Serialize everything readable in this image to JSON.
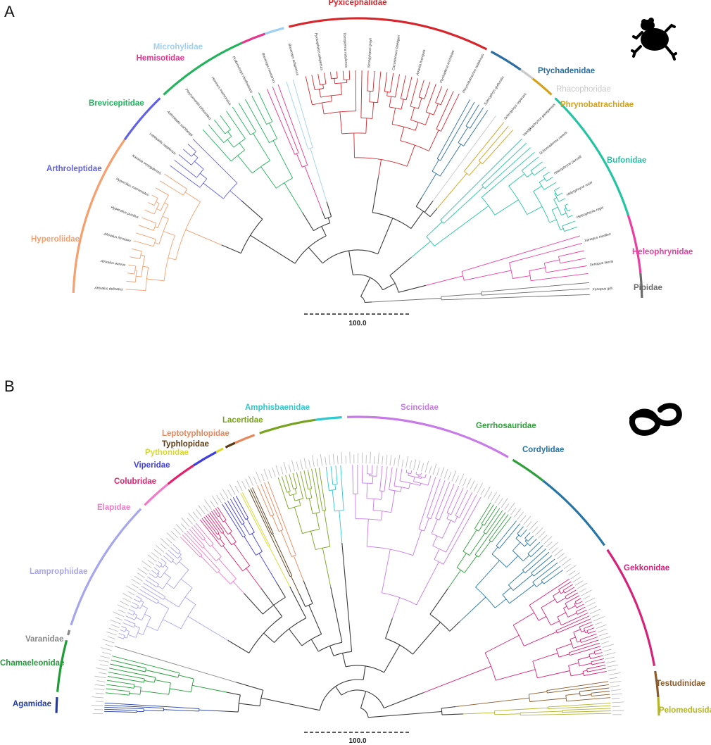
{
  "panels": [
    {
      "letter": "A",
      "silhouette": "frog-silhouette-icon",
      "scale_label": "100.0",
      "families": [
        {
          "name": "Pyxicephalidae",
          "color": "#d7262b"
        },
        {
          "name": "Microhylidae",
          "color": "#9fd0f2"
        },
        {
          "name": "Hemisotidae",
          "color": "#e8338a"
        },
        {
          "name": "Brevicepitidae",
          "color": "#22b35c"
        },
        {
          "name": "Arthroleptidae",
          "color": "#6161e8"
        },
        {
          "name": "Hyperoliidae",
          "color": "#f5a06e"
        },
        {
          "name": "Ptychadenidae",
          "color": "#2a6ea3"
        },
        {
          "name": "Rhacophoridae",
          "color": "#c9c9c9"
        },
        {
          "name": "Phrynobatrachidae",
          "color": "#d3a11a"
        },
        {
          "name": "Bufonidae",
          "color": "#23c4a1"
        },
        {
          "name": "Heleophrynidae",
          "color": "#ea3fa2"
        },
        {
          "name": "Pipidae",
          "color": "#6b6b6b"
        }
      ],
      "tip_labels": [
        "Xenopus gilli",
        "Xenopus laevis",
        "Xenopus muelleri",
        "Heleophryne regis",
        "Heleophryne rosei",
        "Heleophryne purcelli",
        "Schismaderma carens",
        "Vandijkophrynus gariepensis",
        "Sclerophrys capensis",
        "Sclerophrys gutturalis",
        "Phrynobatrachus natalensis",
        "Ptychadena anchietae",
        "Amietia fuscigula",
        "Cacosternum boettgeri",
        "Strongylopus grayii",
        "Tomopterna natalensis",
        "Pyxicephalus adspersus",
        "Breviceps adspersus",
        "Breviceps montanus",
        "Probreviceps rhodesianus",
        "Hemisus marmoratus",
        "Phrynomantis bifasciatus",
        "Arthroleptis wahlbergii",
        "Leptopelis natalensis",
        "Kassina senegalensis",
        "Hyperolius marmoratus",
        "Hyperolius pusillus",
        "Afrixalus fornasini",
        "Afrixalus aureus",
        "Afrixalus delicatus"
      ]
    },
    {
      "letter": "B",
      "silhouette": "snake-silhouette-icon",
      "scale_label": "100.0",
      "families": [
        {
          "name": "Scincidae",
          "color": "#c77ae8"
        },
        {
          "name": "Amphisbaenidae",
          "color": "#2ec8cf"
        },
        {
          "name": "Lacertidae",
          "color": "#77a31f"
        },
        {
          "name": "Leptotyphlopidae",
          "color": "#e8875a"
        },
        {
          "name": "Typhlopidae",
          "color": "#5a3a16"
        },
        {
          "name": "Pythonidae",
          "color": "#d9d92b"
        },
        {
          "name": "Viperidae",
          "color": "#3d3de0"
        },
        {
          "name": "Colubridae",
          "color": "#e6216b"
        },
        {
          "name": "Elapidae",
          "color": "#f07cc7"
        },
        {
          "name": "Lamprophiidae",
          "color": "#a6a6ef"
        },
        {
          "name": "Varanidae",
          "color": "#888888"
        },
        {
          "name": "Chamaeleonidae",
          "color": "#1f9d36"
        },
        {
          "name": "Agamidae",
          "color": "#1f3aa6"
        },
        {
          "name": "Gerrhosauridae",
          "color": "#2e9e3a"
        },
        {
          "name": "Cordylidae",
          "color": "#2675a8"
        },
        {
          "name": "Gekkonidae",
          "color": "#d6237a"
        },
        {
          "name": "Testudinidae",
          "color": "#8a5a2a"
        },
        {
          "name": "Pelomedusidae",
          "color": "#b3b52a"
        }
      ]
    }
  ]
}
